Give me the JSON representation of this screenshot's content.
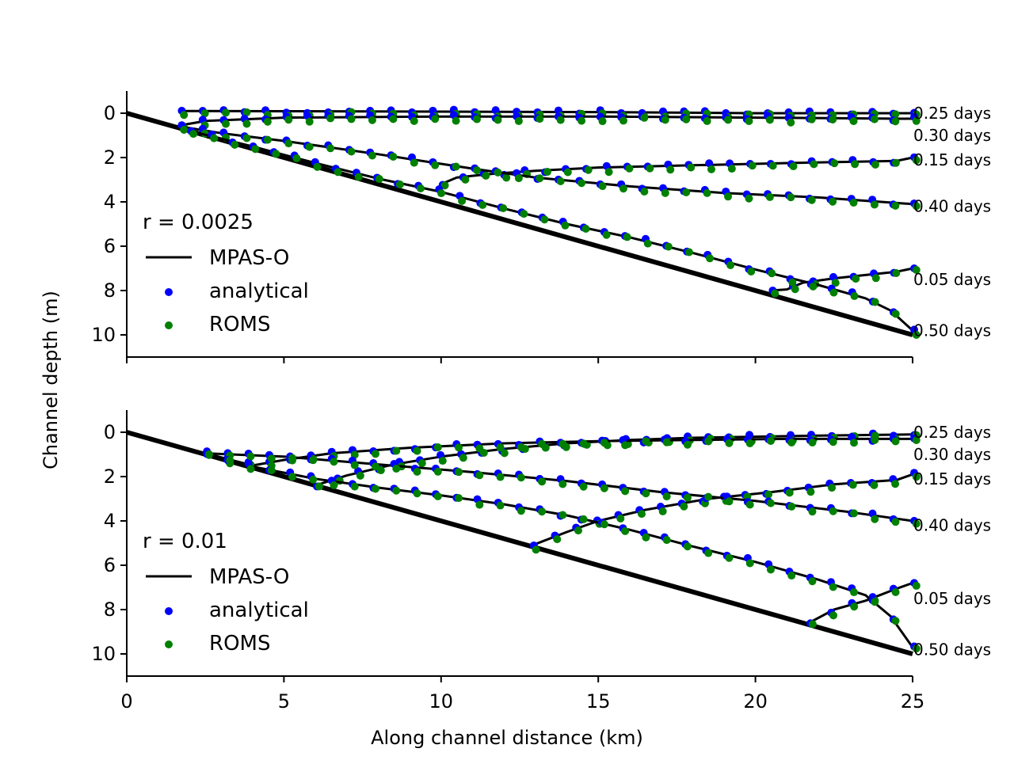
{
  "figure": {
    "xlabel": "Along channel distance (km)",
    "ylabel": "Channel depth (m)"
  },
  "colors": {
    "mpas": "#000000",
    "analytical": "#0000ff",
    "roms": "#008000"
  },
  "chart_data": [
    {
      "type": "line",
      "panel": "top",
      "r_label": "r = 0.0025",
      "xlim": [
        0,
        25
      ],
      "ylim": [
        11,
        -1
      ],
      "xticks": [
        0,
        5,
        10,
        15,
        20,
        25
      ],
      "yticks": [
        0,
        2,
        4,
        6,
        8,
        10
      ],
      "legend": [
        "MPAS-O",
        "analytical",
        "ROMS"
      ],
      "bathymetry": {
        "x": [
          0,
          25
        ],
        "y": [
          0,
          10
        ]
      },
      "curve_labels": [
        {
          "text": "0.25 days",
          "y": 0.0
        },
        {
          "text": "0.30 days",
          "y": 1.0
        },
        {
          "text": "0.15 days",
          "y": 2.1
        },
        {
          "text": "0.40 days",
          "y": 4.2
        },
        {
          "text": "0.05 days",
          "y": 7.5
        },
        {
          "text": "0.50 days",
          "y": 9.8
        }
      ],
      "series": [
        {
          "name": "0.05 days",
          "x": [
            20.5,
            21.0,
            21.5,
            22.5,
            23.5,
            24.5,
            25.0
          ],
          "y": [
            8.0,
            7.95,
            7.65,
            7.45,
            7.3,
            7.15,
            7.0
          ]
        },
        {
          "name": "0.15 days",
          "x": [
            10.0,
            10.5,
            11.5,
            13.0,
            15.0,
            18.0,
            21.0,
            24.5,
            25.0
          ],
          "y": [
            3.2,
            2.9,
            2.75,
            2.6,
            2.45,
            2.35,
            2.25,
            2.15,
            2.0
          ]
        },
        {
          "name": "0.25 days",
          "x": [
            1.7,
            5.0,
            10.0,
            15.0,
            20.0,
            25.0
          ],
          "y": [
            -0.1,
            -0.09,
            -0.07,
            -0.05,
            0.0,
            0.0
          ]
        },
        {
          "name": "0.30 days",
          "x": [
            1.7,
            2.5,
            5.0,
            10.0,
            15.0,
            20.0,
            25.0
          ],
          "y": [
            0.55,
            0.35,
            0.2,
            0.15,
            0.15,
            0.2,
            0.25
          ]
        },
        {
          "name": "0.40 days",
          "x": [
            1.7,
            3.0,
            5.0,
            8.0,
            11.0,
            13.0,
            16.0,
            19.0,
            22.0,
            25.0
          ],
          "y": [
            0.6,
            0.9,
            1.25,
            1.85,
            2.5,
            2.9,
            3.3,
            3.6,
            3.8,
            4.1
          ]
        },
        {
          "name": "0.50 days",
          "x": [
            2.0,
            4.0,
            6.0,
            8.0,
            10.0,
            12.0,
            14.0,
            16.0,
            18.0,
            20.0,
            22.0,
            23.5,
            24.3,
            25.0
          ],
          "y": [
            0.8,
            1.5,
            2.25,
            2.95,
            3.55,
            4.3,
            5.0,
            5.6,
            6.3,
            7.05,
            7.75,
            8.35,
            8.9,
            9.8
          ]
        }
      ]
    },
    {
      "type": "line",
      "panel": "bottom",
      "r_label": "r = 0.01",
      "xlim": [
        0,
        25
      ],
      "ylim": [
        11,
        -1
      ],
      "xticks": [
        0,
        5,
        10,
        15,
        20,
        25
      ],
      "yticks": [
        0,
        2,
        4,
        6,
        8,
        10
      ],
      "legend": [
        "MPAS-O",
        "analytical",
        "ROMS"
      ],
      "bathymetry": {
        "x": [
          0,
          25
        ],
        "y": [
          0,
          10
        ]
      },
      "curve_labels": [
        {
          "text": "0.25 days",
          "y": 0.0
        },
        {
          "text": "0.30 days",
          "y": 1.0
        },
        {
          "text": "0.15 days",
          "y": 2.1
        },
        {
          "text": "0.40 days",
          "y": 4.2
        },
        {
          "text": "0.05 days",
          "y": 7.5
        },
        {
          "text": "0.50 days",
          "y": 9.8
        }
      ],
      "series": [
        {
          "name": "0.05 days",
          "x": [
            21.7,
            22.5,
            23.5,
            24.5,
            25.0
          ],
          "y": [
            8.6,
            8.0,
            7.6,
            7.05,
            6.8
          ]
        },
        {
          "name": "0.15 days",
          "x": [
            12.9,
            14.0,
            15.0,
            16.5,
            18.5,
            20.5,
            22.5,
            24.5,
            25.0
          ],
          "y": [
            5.1,
            4.5,
            4.0,
            3.5,
            3.0,
            2.7,
            2.35,
            2.15,
            1.9
          ]
        },
        {
          "name": "0.25 days",
          "x": [
            6.0,
            7.0,
            8.5,
            10.0,
            12.0,
            14.0,
            16.0,
            18.0,
            20.0,
            22.0,
            25.0
          ],
          "y": [
            2.4,
            1.95,
            1.45,
            1.1,
            0.75,
            0.5,
            0.35,
            0.25,
            0.2,
            0.15,
            0.1
          ]
        },
        {
          "name": "0.30 days",
          "x": [
            2.5,
            4.0,
            5.0,
            6.5,
            9.0,
            12.0,
            15.0,
            18.0,
            21.0,
            25.0
          ],
          "y": [
            0.95,
            1.5,
            1.25,
            0.95,
            0.7,
            0.5,
            0.4,
            0.35,
            0.3,
            0.3
          ]
        },
        {
          "name": "0.40 days",
          "x": [
            2.5,
            5.0,
            8.0,
            11.0,
            14.0,
            17.0,
            20.0,
            23.0,
            25.0
          ],
          "y": [
            0.95,
            1.1,
            1.45,
            1.8,
            2.2,
            2.7,
            3.1,
            3.6,
            4.0
          ]
        },
        {
          "name": "0.50 days",
          "x": [
            2.5,
            4.0,
            6.0,
            8.0,
            10.0,
            12.0,
            14.0,
            16.0,
            18.0,
            20.0,
            22.0,
            23.5,
            24.3,
            25.0
          ],
          "y": [
            0.95,
            1.55,
            2.1,
            2.5,
            2.85,
            3.25,
            3.75,
            4.4,
            5.15,
            5.85,
            6.65,
            7.35,
            8.3,
            9.7
          ]
        }
      ]
    }
  ]
}
